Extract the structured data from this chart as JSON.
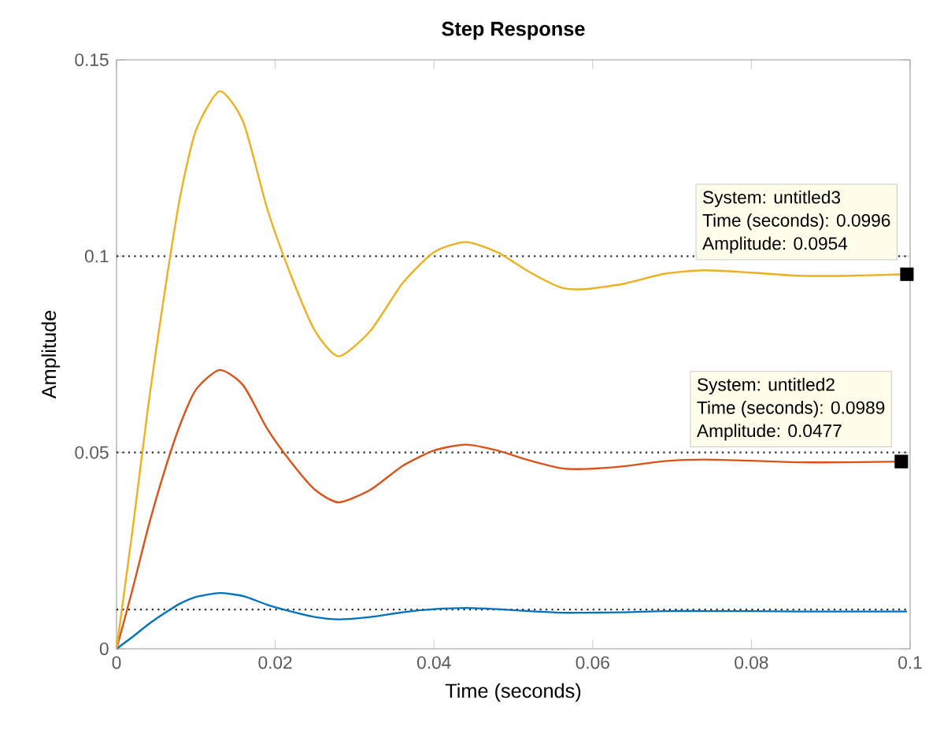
{
  "chart_data": {
    "type": "line",
    "title": "Step Response",
    "xlabel": "Time (seconds)",
    "ylabel": "Amplitude",
    "x": [
      0,
      0.002,
      0.004,
      0.006,
      0.008,
      0.01,
      0.013,
      0.016,
      0.019,
      0.022,
      0.025,
      0.028,
      0.032,
      0.036,
      0.04,
      0.044,
      0.048,
      0.052,
      0.056,
      0.059,
      0.064,
      0.069,
      0.074,
      0.08,
      0.086,
      0.092,
      0.0996
    ],
    "series": [
      {
        "color": "#0072bd",
        "values": [
          0,
          0.003,
          0.0062,
          0.009,
          0.0115,
          0.0132,
          0.0142,
          0.0134,
          0.0112,
          0.0095,
          0.0081,
          0.0075,
          0.0081,
          0.0093,
          0.0101,
          0.0104,
          0.0101,
          0.0096,
          0.0092,
          0.0092,
          0.0093,
          0.0096,
          0.0096,
          0.0096,
          0.0095,
          0.0095,
          0.0095
        ]
      },
      {
        "color": "#d95319",
        "values": [
          0,
          0.015,
          0.031,
          0.045,
          0.057,
          0.066,
          0.071,
          0.067,
          0.056,
          0.0475,
          0.0405,
          0.0373,
          0.0405,
          0.0465,
          0.0505,
          0.052,
          0.0505,
          0.048,
          0.046,
          0.0458,
          0.0465,
          0.0478,
          0.0482,
          0.0479,
          0.0475,
          0.0475,
          0.0477
        ]
      },
      {
        "color": "#edb120",
        "values": [
          0,
          0.03,
          0.062,
          0.09,
          0.115,
          0.132,
          0.142,
          0.134,
          0.112,
          0.095,
          0.081,
          0.0745,
          0.081,
          0.093,
          0.101,
          0.1036,
          0.101,
          0.096,
          0.092,
          0.0916,
          0.093,
          0.0955,
          0.0964,
          0.0958,
          0.095,
          0.095,
          0.0954
        ]
      },
      {
        "type": "scatter",
        "marker": "square",
        "color": "#000000",
        "x": [
          0.0996,
          0.0989
        ],
        "values": [
          0.0954,
          0.0477
        ]
      }
    ],
    "xlim": [
      0,
      0.1
    ],
    "ylim": [
      0,
      0.15
    ],
    "xticks": [
      0,
      0.02,
      0.04,
      0.06,
      0.08,
      0.1
    ],
    "yticks": [
      0,
      0.05,
      0.1,
      0.15
    ],
    "grid": false,
    "marker": "none",
    "line_style": "solid",
    "ref_lines": [
      {
        "axis": "y",
        "value": 0.1,
        "color": "#262626",
        "line_style": "dotted"
      },
      {
        "axis": "y",
        "value": 0.05,
        "color": "#262626",
        "line_style": "dotted"
      },
      {
        "axis": "y",
        "value": 0.01,
        "color": "#262626",
        "line_style": "dotted"
      }
    ],
    "annotations": [
      "System: untitled3",
      "Time (seconds): 0.0996",
      "Amplitude: 0.0954",
      "System: untitled2",
      "Time (seconds): 0.0989",
      "Amplitude: 0.0477"
    ]
  }
}
